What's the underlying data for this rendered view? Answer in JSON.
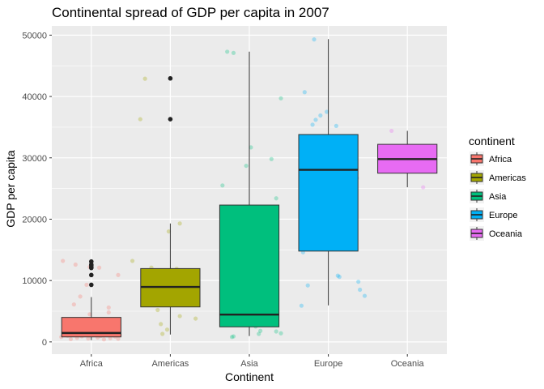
{
  "chart_data": {
    "type": "box",
    "title": "Continental spread of GDP per capita in 2007",
    "xlabel": "Continent",
    "ylabel": "GDP per capita",
    "categories": [
      "Africa",
      "Americas",
      "Asia",
      "Europe",
      "Oceania"
    ],
    "ylim": [
      -2000,
      51500
    ],
    "yticks": [
      0,
      10000,
      20000,
      30000,
      40000,
      50000
    ],
    "ytick_labels": [
      "0",
      "10000",
      "20000",
      "30000",
      "40000",
      "50000"
    ],
    "grid": true,
    "legend": {
      "title": "continent",
      "position": "right",
      "entries": [
        "Africa",
        "Americas",
        "Asia",
        "Europe",
        "Oceania"
      ]
    },
    "colors": {
      "Africa": "#F8766D",
      "Americas": "#A3A500",
      "Asia": "#00BF7D",
      "Europe": "#00B0F6",
      "Oceania": "#E76BF3"
    },
    "boxes": [
      {
        "name": "Africa",
        "whisker_low": 280,
        "q1": 810,
        "median": 1450,
        "q3": 3990,
        "whisker_high": 7300,
        "outliers": [
          9300,
          10900,
          12050,
          12200,
          12500,
          12600,
          13100
        ]
      },
      {
        "name": "Americas",
        "whisker_low": 1200,
        "q1": 5700,
        "median": 8950,
        "q3": 11950,
        "whisker_high": 19300,
        "outliers": [
          36300,
          42950
        ]
      },
      {
        "name": "Asia",
        "whisker_low": 950,
        "q1": 2450,
        "median": 4450,
        "q3": 22300,
        "whisker_high": 47300,
        "outliers": []
      },
      {
        "name": "Europe",
        "whisker_low": 5950,
        "q1": 14800,
        "median": 28050,
        "q3": 33800,
        "whisker_high": 49350,
        "outliers": []
      },
      {
        "name": "Oceania",
        "whisker_low": 25200,
        "q1": 27500,
        "median": 29800,
        "q3": 32200,
        "whisker_high": 34400,
        "outliers": []
      }
    ],
    "jitter_points": [
      {
        "category": "Africa",
        "x_offset": -0.36,
        "y": 13200
      },
      {
        "category": "Africa",
        "x_offset": -0.2,
        "y": 12600
      },
      {
        "category": "Africa",
        "x_offset": -0.02,
        "y": 12200
      },
      {
        "category": "Africa",
        "x_offset": 0.1,
        "y": 12100
      },
      {
        "category": "Africa",
        "x_offset": 0.34,
        "y": 10900
      },
      {
        "category": "Africa",
        "x_offset": -0.06,
        "y": 9300
      },
      {
        "category": "Africa",
        "x_offset": -0.14,
        "y": 7400
      },
      {
        "category": "Africa",
        "x_offset": -0.22,
        "y": 6100
      },
      {
        "category": "Africa",
        "x_offset": 0.22,
        "y": 5600
      },
      {
        "category": "Africa",
        "x_offset": 0.22,
        "y": 4800
      },
      {
        "category": "Africa",
        "x_offset": -0.02,
        "y": 4500
      },
      {
        "category": "Africa",
        "x_offset": 0.12,
        "y": 3600
      },
      {
        "category": "Africa",
        "x_offset": -0.28,
        "y": 3200
      },
      {
        "category": "Africa",
        "x_offset": 0.3,
        "y": 2700
      },
      {
        "category": "Africa",
        "x_offset": -0.16,
        "y": 2200
      },
      {
        "category": "Africa",
        "x_offset": 0.05,
        "y": 2000
      },
      {
        "category": "Africa",
        "x_offset": -0.34,
        "y": 1800
      },
      {
        "category": "Africa",
        "x_offset": 0.18,
        "y": 1600
      },
      {
        "category": "Africa",
        "x_offset": -0.08,
        "y": 1500
      },
      {
        "category": "Africa",
        "x_offset": 0.26,
        "y": 1400
      },
      {
        "category": "Africa",
        "x_offset": -0.24,
        "y": 1300
      },
      {
        "category": "Africa",
        "x_offset": 0.0,
        "y": 1200
      },
      {
        "category": "Africa",
        "x_offset": 0.36,
        "y": 1100
      },
      {
        "category": "Africa",
        "x_offset": -0.3,
        "y": 1000
      },
      {
        "category": "Africa",
        "x_offset": 0.12,
        "y": 950
      },
      {
        "category": "Africa",
        "x_offset": -0.12,
        "y": 900
      },
      {
        "category": "Africa",
        "x_offset": 0.3,
        "y": 850
      },
      {
        "category": "Africa",
        "x_offset": -0.38,
        "y": 800
      },
      {
        "category": "Africa",
        "x_offset": 0.08,
        "y": 700
      },
      {
        "category": "Africa",
        "x_offset": -0.18,
        "y": 650
      },
      {
        "category": "Africa",
        "x_offset": 0.24,
        "y": 600
      },
      {
        "category": "Africa",
        "x_offset": -0.04,
        "y": 550
      },
      {
        "category": "Africa",
        "x_offset": 0.34,
        "y": 500
      },
      {
        "category": "Africa",
        "x_offset": -0.26,
        "y": 450
      },
      {
        "category": "Africa",
        "x_offset": 0.16,
        "y": 400
      },
      {
        "category": "Americas",
        "x_offset": -0.32,
        "y": 42900
      },
      {
        "category": "Americas",
        "x_offset": -0.38,
        "y": 36300
      },
      {
        "category": "Americas",
        "x_offset": 0.12,
        "y": 19300
      },
      {
        "category": "Americas",
        "x_offset": -0.02,
        "y": 18000
      },
      {
        "category": "Americas",
        "x_offset": -0.48,
        "y": 13200
      },
      {
        "category": "Americas",
        "x_offset": -0.24,
        "y": 12100
      },
      {
        "category": "Americas",
        "x_offset": 0.08,
        "y": 11900
      },
      {
        "category": "Americas",
        "x_offset": -0.14,
        "y": 11200
      },
      {
        "category": "Americas",
        "x_offset": 0.22,
        "y": 9800
      },
      {
        "category": "Americas",
        "x_offset": -0.3,
        "y": 9000
      },
      {
        "category": "Americas",
        "x_offset": 0.16,
        "y": 8900
      },
      {
        "category": "Americas",
        "x_offset": -0.08,
        "y": 8000
      },
      {
        "category": "Americas",
        "x_offset": 0.3,
        "y": 7400
      },
      {
        "category": "Americas",
        "x_offset": -0.22,
        "y": 6900
      },
      {
        "category": "Americas",
        "x_offset": 0.04,
        "y": 6000
      },
      {
        "category": "Americas",
        "x_offset": -0.16,
        "y": 5200
      },
      {
        "category": "Americas",
        "x_offset": 0.12,
        "y": 4200
      },
      {
        "category": "Americas",
        "x_offset": 0.32,
        "y": 3800
      },
      {
        "category": "Americas",
        "x_offset": -0.12,
        "y": 2900
      },
      {
        "category": "Americas",
        "x_offset": -0.04,
        "y": 2000
      },
      {
        "category": "Americas",
        "x_offset": -0.1,
        "y": 1300
      },
      {
        "category": "Asia",
        "x_offset": -0.28,
        "y": 47300
      },
      {
        "category": "Asia",
        "x_offset": -0.2,
        "y": 47100
      },
      {
        "category": "Asia",
        "x_offset": 0.4,
        "y": 39700
      },
      {
        "category": "Asia",
        "x_offset": 0.02,
        "y": 31700
      },
      {
        "category": "Asia",
        "x_offset": 0.28,
        "y": 29800
      },
      {
        "category": "Asia",
        "x_offset": -0.04,
        "y": 28700
      },
      {
        "category": "Asia",
        "x_offset": -0.34,
        "y": 25500
      },
      {
        "category": "Asia",
        "x_offset": 0.34,
        "y": 23400
      },
      {
        "category": "Asia",
        "x_offset": -0.18,
        "y": 12400
      },
      {
        "category": "Asia",
        "x_offset": 0.06,
        "y": 11600
      },
      {
        "category": "Asia",
        "x_offset": 0.24,
        "y": 10500
      },
      {
        "category": "Asia",
        "x_offset": -0.26,
        "y": 9800
      },
      {
        "category": "Asia",
        "x_offset": -0.1,
        "y": 7500
      },
      {
        "category": "Asia",
        "x_offset": 0.14,
        "y": 5900
      },
      {
        "category": "Asia",
        "x_offset": -0.24,
        "y": 4900
      },
      {
        "category": "Asia",
        "x_offset": 0.2,
        "y": 4500
      },
      {
        "category": "Asia",
        "x_offset": -0.08,
        "y": 3500
      },
      {
        "category": "Asia",
        "x_offset": 0.3,
        "y": 3100
      },
      {
        "category": "Asia",
        "x_offset": -0.32,
        "y": 2800
      },
      {
        "category": "Asia",
        "x_offset": 0.08,
        "y": 2500
      },
      {
        "category": "Asia",
        "x_offset": 0.14,
        "y": 1800
      },
      {
        "category": "Asia",
        "x_offset": 0.34,
        "y": 1700
      },
      {
        "category": "Asia",
        "x_offset": 0.4,
        "y": 1400
      },
      {
        "category": "Asia",
        "x_offset": 0.12,
        "y": 1300
      },
      {
        "category": "Asia",
        "x_offset": -0.2,
        "y": 900
      },
      {
        "category": "Asia",
        "x_offset": -0.22,
        "y": 800
      },
      {
        "category": "Europe",
        "x_offset": -0.18,
        "y": 49300
      },
      {
        "category": "Europe",
        "x_offset": -0.3,
        "y": 40700
      },
      {
        "category": "Europe",
        "x_offset": -0.02,
        "y": 37500
      },
      {
        "category": "Europe",
        "x_offset": -0.1,
        "y": 36900
      },
      {
        "category": "Europe",
        "x_offset": -0.16,
        "y": 36200
      },
      {
        "category": "Europe",
        "x_offset": -0.2,
        "y": 35400
      },
      {
        "category": "Europe",
        "x_offset": 0.1,
        "y": 35200
      },
      {
        "category": "Europe",
        "x_offset": 0.3,
        "y": 33500
      },
      {
        "category": "Europe",
        "x_offset": 0.16,
        "y": 30300
      },
      {
        "category": "Europe",
        "x_offset": -0.1,
        "y": 28700
      },
      {
        "category": "Europe",
        "x_offset": 0.24,
        "y": 27600
      },
      {
        "category": "Europe",
        "x_offset": 0.36,
        "y": 26700
      },
      {
        "category": "Europe",
        "x_offset": -0.24,
        "y": 25500
      },
      {
        "category": "Europe",
        "x_offset": 0.04,
        "y": 22800
      },
      {
        "category": "Europe",
        "x_offset": -0.04,
        "y": 20500
      },
      {
        "category": "Europe",
        "x_offset": 0.18,
        "y": 18000
      },
      {
        "category": "Europe",
        "x_offset": -0.32,
        "y": 14600
      },
      {
        "category": "Europe",
        "x_offset": 0.12,
        "y": 10800
      },
      {
        "category": "Europe",
        "x_offset": 0.14,
        "y": 10600
      },
      {
        "category": "Europe",
        "x_offset": 0.38,
        "y": 9800
      },
      {
        "category": "Europe",
        "x_offset": 0.4,
        "y": 8500
      },
      {
        "category": "Europe",
        "x_offset": 0.46,
        "y": 7500
      },
      {
        "category": "Europe",
        "x_offset": -0.26,
        "y": 9200
      },
      {
        "category": "Europe",
        "x_offset": -0.34,
        "y": 5900
      },
      {
        "category": "Oceania",
        "x_offset": -0.2,
        "y": 34400
      },
      {
        "category": "Oceania",
        "x_offset": 0.2,
        "y": 25200
      }
    ]
  }
}
